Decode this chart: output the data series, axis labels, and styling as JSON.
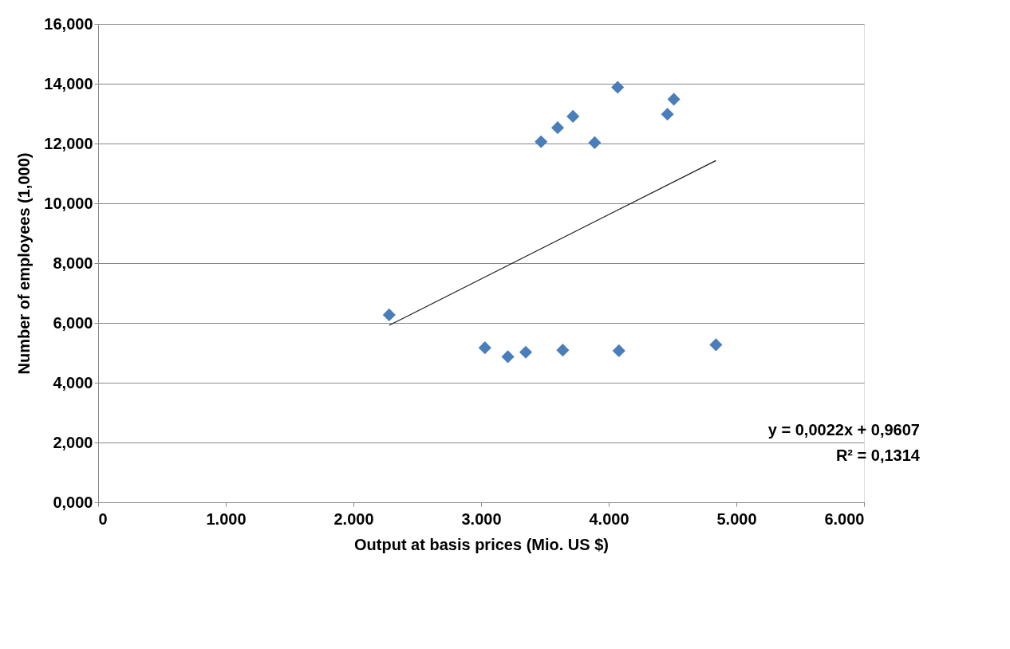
{
  "chart_data": {
    "type": "scatter",
    "xlabel": "Output at basis prices (Mio. US $)",
    "ylabel": "Number of employees (1,000)",
    "xlim": [
      0,
      6000
    ],
    "ylim": [
      0,
      16
    ],
    "xticks": [
      0,
      {
        "value": 1000,
        "label": "1.000"
      },
      {
        "value": 2000,
        "label": "2.000"
      },
      {
        "value": 3000,
        "label": "3.000"
      },
      {
        "value": 4000,
        "label": "4.000"
      },
      {
        "value": 5000,
        "label": "5.000"
      },
      {
        "value": 6000,
        "label": "6.000"
      }
    ],
    "yticks": [
      {
        "value": 0,
        "label": "0,000"
      },
      {
        "value": 2,
        "label": "2,000"
      },
      {
        "value": 4,
        "label": "4,000"
      },
      {
        "value": 6,
        "label": "6,000"
      },
      {
        "value": 8,
        "label": "8,000"
      },
      {
        "value": 10,
        "label": "10,000"
      },
      {
        "value": 12,
        "label": "12,000"
      },
      {
        "value": 14,
        "label": "14,000"
      },
      {
        "value": 16,
        "label": "16,000"
      }
    ],
    "grid": "y",
    "series": [
      {
        "color": "#4a7ebb",
        "marker": "diamond",
        "x": [
          2280,
          3030,
          3210,
          3350,
          3470,
          3600,
          3720,
          3640,
          3890,
          4070,
          4080,
          4460,
          4510,
          4840
        ],
        "values": [
          6.27,
          5.17,
          4.87,
          5.02,
          12.06,
          12.53,
          12.91,
          5.09,
          12.03,
          13.88,
          5.07,
          12.98,
          13.48,
          5.27
        ]
      },
      {
        "type": "line",
        "marker": "none",
        "color": "#1a1a1a",
        "x": [
          2280,
          4840
        ],
        "values": [
          5.92,
          11.43
        ]
      }
    ],
    "annotations": [
      "y = 0,0022x + 0,9607",
      "R² = 0,1314"
    ]
  }
}
